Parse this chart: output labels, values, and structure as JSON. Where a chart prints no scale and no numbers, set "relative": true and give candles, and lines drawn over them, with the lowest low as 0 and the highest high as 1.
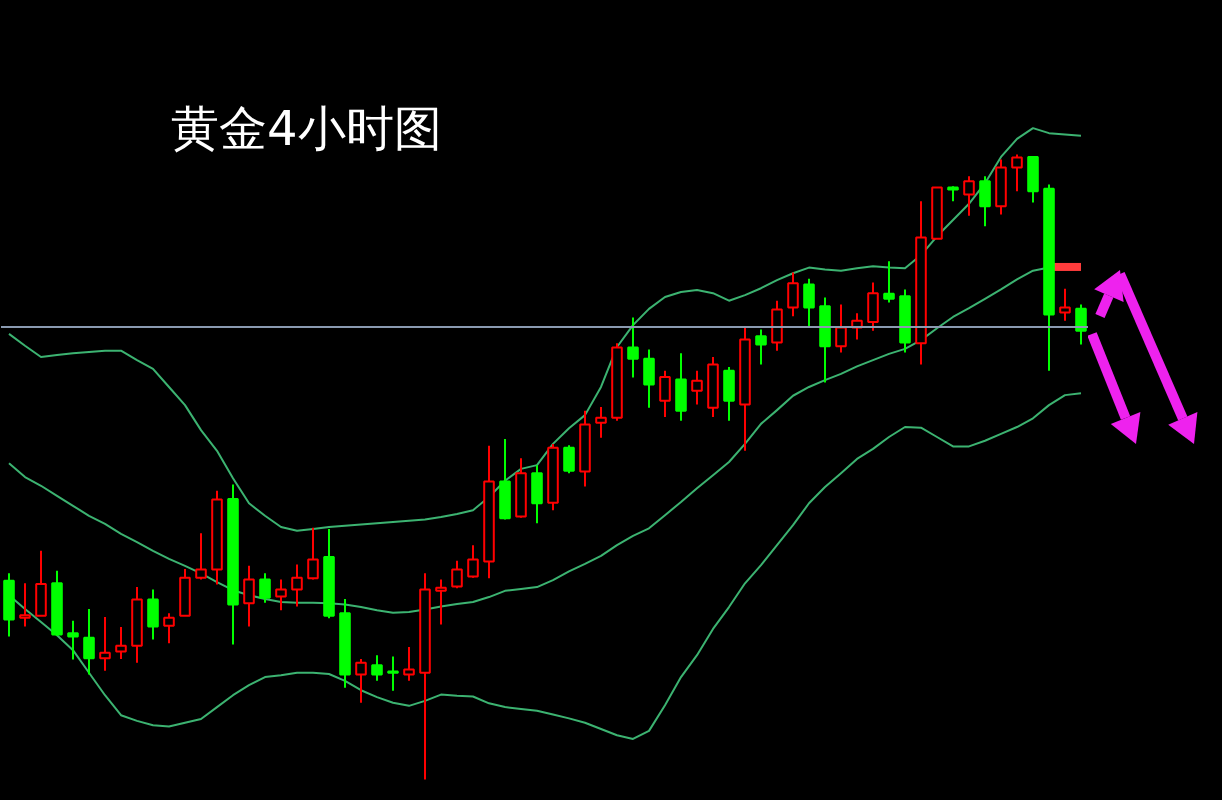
{
  "chart_data": {
    "type": "candlestick",
    "title": "黄金4小时图",
    "relative": true,
    "categories": [
      null,
      null,
      null,
      null,
      null,
      null,
      null,
      null,
      null,
      null,
      null,
      null,
      null,
      null,
      null,
      null,
      null,
      null,
      null,
      null,
      null,
      null,
      null,
      null,
      null,
      null,
      null,
      null,
      null,
      null,
      null,
      null,
      null,
      null,
      null,
      null,
      null,
      null,
      null,
      null,
      null,
      null,
      null,
      null,
      null,
      null,
      null,
      null,
      null,
      null,
      null,
      null,
      null,
      null,
      null,
      null,
      null,
      null,
      null,
      null,
      null,
      null,
      null,
      null,
      null,
      null,
      null,
      null
    ],
    "ohlc": [
      [
        0.318,
        0.33,
        0.229,
        0.256
      ],
      [
        0.259,
        0.314,
        0.245,
        0.263
      ],
      [
        0.262,
        0.366,
        0.262,
        0.313
      ],
      [
        0.314,
        0.334,
        0.23,
        0.232
      ],
      [
        0.234,
        0.254,
        0.192,
        0.229
      ],
      [
        0.227,
        0.273,
        0.168,
        0.194
      ],
      [
        0.194,
        0.26,
        0.174,
        0.203
      ],
      [
        0.205,
        0.244,
        0.193,
        0.214
      ],
      [
        0.214,
        0.308,
        0.187,
        0.288
      ],
      [
        0.288,
        0.304,
        0.224,
        0.245
      ],
      [
        0.246,
        0.266,
        0.218,
        0.259
      ],
      [
        0.262,
        0.337,
        0.262,
        0.323
      ],
      [
        0.323,
        0.394,
        0.32,
        0.336
      ],
      [
        0.336,
        0.462,
        0.312,
        0.448
      ],
      [
        0.449,
        0.472,
        0.216,
        0.28
      ],
      [
        0.282,
        0.342,
        0.245,
        0.32
      ],
      [
        0.32,
        0.33,
        0.283,
        0.291
      ],
      [
        0.293,
        0.32,
        0.271,
        0.304
      ],
      [
        0.304,
        0.344,
        0.277,
        0.323
      ],
      [
        0.322,
        0.403,
        0.32,
        0.352
      ],
      [
        0.356,
        0.401,
        0.258,
        0.262
      ],
      [
        0.266,
        0.289,
        0.147,
        0.168
      ],
      [
        0.168,
        0.193,
        0.123,
        0.187
      ],
      [
        0.183,
        0.199,
        0.158,
        0.168
      ],
      [
        0.173,
        0.197,
        0.142,
        0.171
      ],
      [
        0.168,
        0.212,
        0.158,
        0.176
      ],
      [
        0.171,
        0.33,
        0.0,
        0.304
      ],
      [
        0.302,
        0.32,
        0.248,
        0.307
      ],
      [
        0.309,
        0.35,
        0.306,
        0.336
      ],
      [
        0.325,
        0.375,
        0.323,
        0.352
      ],
      [
        0.349,
        0.534,
        0.322,
        0.477
      ],
      [
        0.477,
        0.545,
        0.416,
        0.418
      ],
      [
        0.421,
        0.514,
        0.419,
        0.49
      ],
      [
        0.49,
        0.503,
        0.41,
        0.442
      ],
      [
        0.443,
        0.537,
        0.431,
        0.531
      ],
      [
        0.531,
        0.535,
        0.49,
        0.494
      ],
      [
        0.493,
        0.59,
        0.469,
        0.568
      ],
      [
        0.571,
        0.596,
        0.547,
        0.579
      ],
      [
        0.579,
        0.698,
        0.574,
        0.691
      ],
      [
        0.691,
        0.739,
        0.643,
        0.673
      ],
      [
        0.673,
        0.688,
        0.595,
        0.632
      ],
      [
        0.606,
        0.654,
        0.58,
        0.644
      ],
      [
        0.64,
        0.682,
        0.574,
        0.59
      ],
      [
        0.622,
        0.654,
        0.6,
        0.638
      ],
      [
        0.595,
        0.676,
        0.58,
        0.664
      ],
      [
        0.654,
        0.66,
        0.574,
        0.606
      ],
      [
        0.6,
        0.723,
        0.526,
        0.704
      ],
      [
        0.709,
        0.72,
        0.664,
        0.696
      ],
      [
        0.699,
        0.766,
        0.686,
        0.752
      ],
      [
        0.755,
        0.811,
        0.741,
        0.794
      ],
      [
        0.792,
        0.801,
        0.725,
        0.755
      ],
      [
        0.757,
        0.771,
        0.635,
        0.693
      ],
      [
        0.693,
        0.76,
        0.683,
        0.723
      ],
      [
        0.723,
        0.746,
        0.704,
        0.734
      ],
      [
        0.732,
        0.795,
        0.718,
        0.778
      ],
      [
        0.777,
        0.829,
        0.763,
        0.769
      ],
      [
        0.773,
        0.784,
        0.683,
        0.699
      ],
      [
        0.698,
        0.925,
        0.664,
        0.867
      ],
      [
        0.865,
        0.947,
        0.865,
        0.947
      ],
      [
        0.947,
        0.949,
        0.925,
        0.944
      ],
      [
        0.936,
        0.965,
        0.902,
        0.957
      ],
      [
        0.957,
        0.965,
        0.885,
        0.917
      ],
      [
        0.917,
        0.992,
        0.904,
        0.979
      ],
      [
        0.979,
        1.0,
        0.941,
        0.995
      ],
      [
        0.996,
        0.996,
        0.923,
        0.941
      ],
      [
        0.945,
        0.952,
        0.654,
        0.744
      ],
      [
        0.747,
        0.785,
        0.734,
        0.755
      ],
      [
        0.753,
        0.76,
        0.696,
        0.718
      ]
    ],
    "colors": [
      "#00ff00",
      "#ff0000",
      "#ff0000",
      "#00ff00",
      "#00ff00",
      "#00ff00",
      "#ff0000",
      "#ff0000",
      "#ff0000",
      "#00ff00",
      "#ff0000",
      "#ff0000",
      "#ff0000",
      "#ff0000",
      "#00ff00",
      "#ff0000",
      "#00ff00",
      "#ff0000",
      "#ff0000",
      "#ff0000",
      "#00ff00",
      "#00ff00",
      "#ff0000",
      "#00ff00",
      "#00ff00",
      "#ff0000",
      "#ff0000",
      "#ff0000",
      "#ff0000",
      "#ff0000",
      "#ff0000",
      "#00ff00",
      "#ff0000",
      "#00ff00",
      "#ff0000",
      "#00ff00",
      "#ff0000",
      "#ff0000",
      "#ff0000",
      "#00ff00",
      "#00ff00",
      "#ff0000",
      "#00ff00",
      "#ff0000",
      "#ff0000",
      "#00ff00",
      "#ff0000",
      "#00ff00",
      "#ff0000",
      "#ff0000",
      "#00ff00",
      "#00ff00",
      "#ff0000",
      "#ff0000",
      "#ff0000",
      "#00ff00",
      "#00ff00",
      "#ff0000",
      "#ff0000",
      "#00ff00",
      "#ff0000",
      "#00ff00",
      "#ff0000",
      "#ff0000",
      "#00ff00",
      "#00ff00",
      "#ff0000",
      "#00ff00"
    ],
    "series": [
      {
        "type": "line",
        "color": "#3cb371",
        "values": [
          0.713,
          0.694,
          0.676,
          0.679,
          0.682,
          0.684,
          0.686,
          0.686,
          0.671,
          0.657,
          0.628,
          0.599,
          0.559,
          0.526,
          0.482,
          0.442,
          0.422,
          0.404,
          0.398,
          0.401,
          0.404,
          0.406,
          0.408,
          0.41,
          0.412,
          0.414,
          0.416,
          0.42,
          0.425,
          0.431,
          0.452,
          0.478,
          0.497,
          0.503,
          0.537,
          0.562,
          0.583,
          0.628,
          0.692,
          0.727,
          0.753,
          0.772,
          0.78,
          0.783,
          0.778,
          0.766,
          0.775,
          0.786,
          0.799,
          0.81,
          0.819,
          0.816,
          0.814,
          0.818,
          0.821,
          0.819,
          0.818,
          0.839,
          0.869,
          0.895,
          0.921,
          0.954,
          0.996,
          1.025,
          1.042,
          1.034,
          1.032,
          1.03
        ]
      },
      {
        "type": "line",
        "color": "#3cb371",
        "values": [
          0.506,
          0.484,
          0.47,
          0.454,
          0.438,
          0.422,
          0.409,
          0.393,
          0.38,
          0.366,
          0.353,
          0.342,
          0.33,
          0.316,
          0.303,
          0.295,
          0.289,
          0.284,
          0.283,
          0.283,
          0.282,
          0.28,
          0.276,
          0.271,
          0.267,
          0.268,
          0.272,
          0.277,
          0.281,
          0.284,
          0.292,
          0.302,
          0.305,
          0.308,
          0.319,
          0.333,
          0.345,
          0.358,
          0.375,
          0.39,
          0.402,
          0.423,
          0.444,
          0.466,
          0.487,
          0.508,
          0.537,
          0.569,
          0.591,
          0.614,
          0.628,
          0.639,
          0.649,
          0.661,
          0.671,
          0.681,
          0.689,
          0.703,
          0.722,
          0.74,
          0.754,
          0.769,
          0.784,
          0.8,
          0.814,
          0.819,
          null,
          null
        ]
      },
      {
        "type": "line",
        "color": "#3cb371",
        "values": [
          0.295,
          0.273,
          0.252,
          0.231,
          0.207,
          0.171,
          0.135,
          0.103,
          0.094,
          0.087,
          0.085,
          0.091,
          0.097,
          0.116,
          0.135,
          0.151,
          0.164,
          0.167,
          0.171,
          0.171,
          0.169,
          0.158,
          0.143,
          0.132,
          0.123,
          0.118,
          0.126,
          0.136,
          0.134,
          0.133,
          0.122,
          0.116,
          0.113,
          0.11,
          0.104,
          0.098,
          0.091,
          0.081,
          0.071,
          0.065,
          0.078,
          0.119,
          0.164,
          0.199,
          0.241,
          0.276,
          0.314,
          0.343,
          0.375,
          0.407,
          0.442,
          0.468,
          0.49,
          0.513,
          0.529,
          0.548,
          0.564,
          0.563,
          0.548,
          0.533,
          0.533,
          0.542,
          0.553,
          0.564,
          0.578,
          0.599,
          0.615,
          0.618
        ]
      },
      {
        "type": "line",
        "color": "#ff3c3c",
        "values": [
          null,
          null,
          null,
          null,
          null,
          null,
          null,
          null,
          null,
          null,
          null,
          null,
          null,
          null,
          null,
          null,
          null,
          null,
          null,
          null,
          null,
          null,
          null,
          null,
          null,
          null,
          null,
          null,
          null,
          null,
          null,
          null,
          null,
          null,
          null,
          null,
          null,
          null,
          null,
          null,
          null,
          null,
          null,
          null,
          null,
          null,
          null,
          null,
          null,
          null,
          null,
          null,
          null,
          null,
          null,
          null,
          null,
          null,
          null,
          null,
          null,
          null,
          null,
          null,
          null,
          0.82,
          0.82,
          0.82
        ]
      }
    ],
    "ref_lines": [
      {
        "axis": "y",
        "value": 0.724,
        "color": "#8a9ab0"
      }
    ]
  }
}
